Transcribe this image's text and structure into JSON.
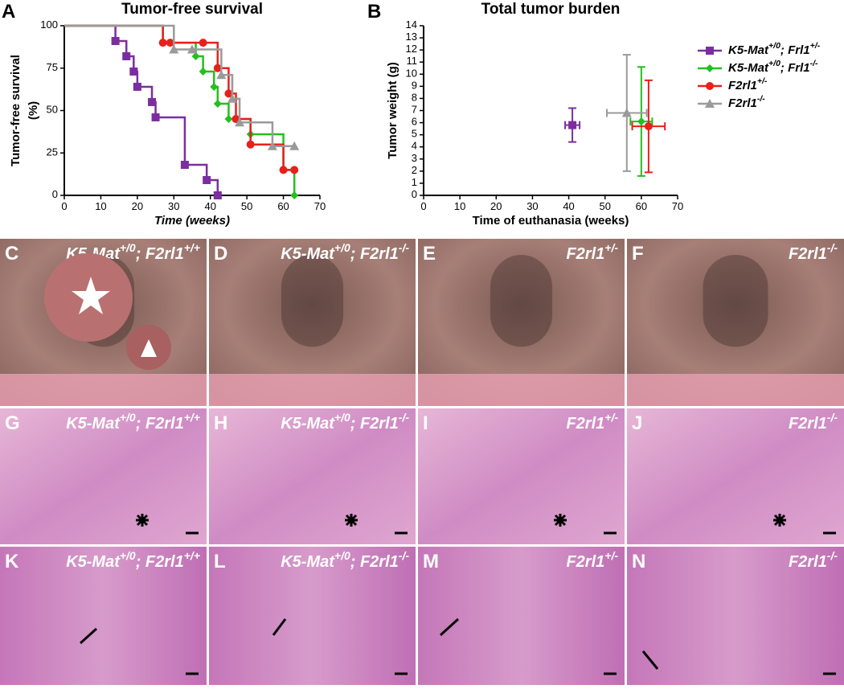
{
  "chart_data": [
    {
      "type": "step",
      "panel_label": "A",
      "title": "Tumor-free survival",
      "x_label": "Time (weeks)",
      "y_label": [
        "Tumor-free survival",
        "(%)"
      ],
      "xlim": [
        0,
        70
      ],
      "xticks": [
        0,
        10,
        20,
        30,
        40,
        50,
        60,
        70
      ],
      "ylim": [
        0,
        100
      ],
      "yticks": [
        0,
        25,
        50,
        75,
        100
      ],
      "series": [
        {
          "color": "#7b2ea0",
          "marker": "square",
          "x": [
            0,
            14,
            17,
            19,
            20,
            24,
            25,
            33,
            39,
            42
          ],
          "values": [
            100,
            91,
            82,
            73,
            64,
            55,
            46,
            18,
            9,
            0
          ]
        },
        {
          "color": "#22c01e",
          "marker": "diamond",
          "x": [
            0,
            27,
            36,
            38,
            41,
            42,
            45,
            51,
            60,
            63
          ],
          "values": [
            100,
            90,
            82,
            73,
            64,
            54,
            45,
            36,
            15,
            0
          ]
        },
        {
          "color": "#e8201c",
          "marker": "circle",
          "x": [
            0,
            27,
            29,
            38,
            42,
            45,
            47,
            51,
            60,
            63
          ],
          "values": [
            100,
            90,
            90,
            90,
            75,
            60,
            45,
            30,
            15,
            15
          ]
        },
        {
          "color": "#9a9a9a",
          "marker": "triangle",
          "x": [
            0,
            30,
            35,
            43,
            46,
            48,
            57,
            63
          ],
          "values": [
            100,
            86,
            86,
            71,
            57,
            43,
            29,
            29
          ]
        }
      ]
    },
    {
      "type": "errorscatter",
      "panel_label": "B",
      "title": "Total tumor burden",
      "x_label": "Time of euthanasia (weeks)",
      "y_label": [
        "Tumor weight (g)"
      ],
      "xlim": [
        0,
        70
      ],
      "xticks": [
        0,
        10,
        20,
        30,
        40,
        50,
        60,
        70
      ],
      "ylim": [
        0,
        14
      ],
      "yticks": [
        0,
        1,
        2,
        3,
        4,
        5,
        6,
        7,
        8,
        9,
        10,
        11,
        12,
        13,
        14
      ],
      "legend": "right",
      "series": [
        {
          "name": "K5-Mat+/0; Frl1+/-",
          "color": "#7b2ea0",
          "marker": "square",
          "x": [
            41
          ],
          "values": [
            5.8
          ],
          "xerr": [
            2
          ],
          "yerr": [
            1.4
          ]
        },
        {
          "name": "K5-Mat+/0; Frl1-/-",
          "color": "#22c01e",
          "marker": "diamond",
          "x": [
            60
          ],
          "values": [
            6.1
          ],
          "xerr": [
            3
          ],
          "yerr": [
            4.5
          ]
        },
        {
          "name": "F2rl1+/-",
          "color": "#e8201c",
          "marker": "circle",
          "x": [
            62
          ],
          "values": [
            5.7
          ],
          "xerr": [
            4.5
          ],
          "yerr": [
            3.8
          ]
        },
        {
          "name": "F2rl1-/-",
          "color": "#9a9a9a",
          "marker": "triangle",
          "x": [
            56
          ],
          "values": [
            6.8
          ],
          "xerr": [
            5.5
          ],
          "yerr": [
            4.8
          ]
        }
      ]
    }
  ],
  "panels": [
    {
      "letter": "C",
      "label": "K5-Mat+/0; F2rl1+/+"
    },
    {
      "letter": "D",
      "label": "K5-Mat+/0; F2rl1-/-"
    },
    {
      "letter": "E",
      "label": "F2rl1+/-"
    },
    {
      "letter": "F",
      "label": "F2rl1-/-"
    },
    {
      "letter": "G",
      "label": "K5-Mat+/0; F2rl1+/+"
    },
    {
      "letter": "H",
      "label": "K5-Mat+/0; F2rl1-/-"
    },
    {
      "letter": "I",
      "label": "F2rl1+/-"
    },
    {
      "letter": "J",
      "label": "F2rl1-/-"
    },
    {
      "letter": "K",
      "label": "K5-Mat+/0; F2rl1+/+"
    },
    {
      "letter": "L",
      "label": "K5-Mat+/0; F2rl1-/-"
    },
    {
      "letter": "M",
      "label": "F2rl1+/-"
    },
    {
      "letter": "N",
      "label": "F2rl1-/-"
    }
  ]
}
